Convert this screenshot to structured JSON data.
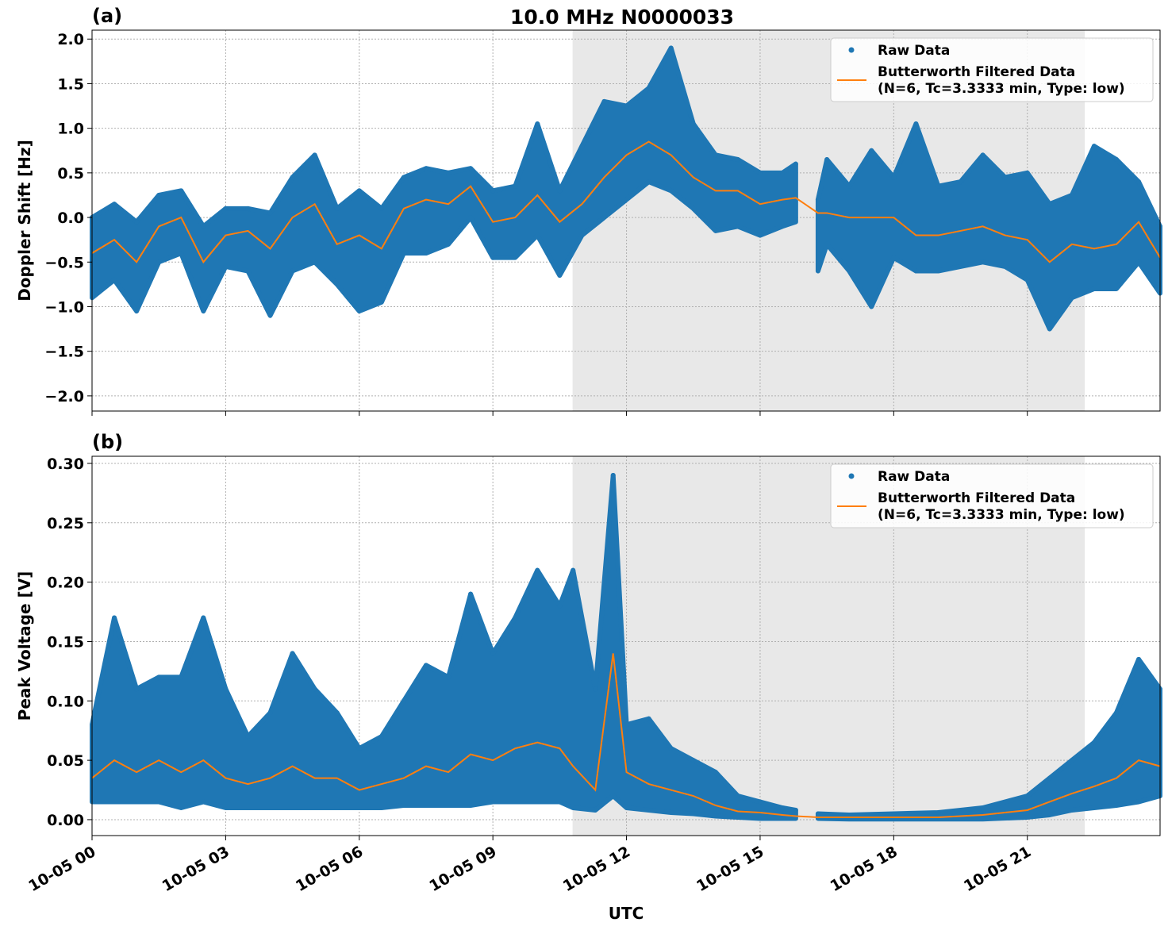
{
  "title": "10.0 MHz N0000033",
  "xlabel": "UTC",
  "x_tick_labels": [
    "10-05 00",
    "10-05 03",
    "10-05 06",
    "10-05 09",
    "10-05 12",
    "10-05 15",
    "10-05 18",
    "10-05 21"
  ],
  "x_tick_hours": [
    0,
    3,
    6,
    9,
    12,
    15,
    18,
    21
  ],
  "colors": {
    "raw": "#1f77b4",
    "filtered": "#ff7f0e",
    "shade": "#e8e8e8"
  },
  "chart_data": [
    {
      "type": "scatter",
      "panel_label": "(a)",
      "ylabel": "Doppler Shift [Hz]",
      "xlim_hours": [
        0,
        23.98
      ],
      "ylim": [
        -2.17,
        2.1
      ],
      "yticks": [
        -2.0,
        -1.5,
        -1.0,
        -0.5,
        0.0,
        0.5,
        1.0,
        1.5,
        2.0
      ],
      "ytick_labels": [
        "−2.0",
        "−1.5",
        "−1.0",
        "−0.5",
        "0.0",
        "0.5",
        "1.0",
        "1.5",
        "2.0"
      ],
      "grid": true,
      "shaded_span_hours": [
        10.79,
        22.29
      ],
      "legend": {
        "placement": "upper right",
        "raw": "Raw Data",
        "filtered_line1": "Butterworth Filtered Data",
        "filtered_line2": "(N=6, Tc=3.3333 min, Type: low)"
      },
      "data_gap_hours": [
        15.8,
        16.3
      ],
      "columns": [
        "hour",
        "filtered",
        "raw_min",
        "raw_max"
      ],
      "points": [
        [
          0,
          -0.4,
          -0.9,
          0.0
        ],
        [
          0.5,
          -0.25,
          -0.7,
          0.15
        ],
        [
          1.0,
          -0.5,
          -1.05,
          -0.05
        ],
        [
          1.5,
          -0.1,
          -0.5,
          0.25
        ],
        [
          2.0,
          0.0,
          -0.4,
          0.3
        ],
        [
          2.5,
          -0.5,
          -1.05,
          -0.1
        ],
        [
          3.0,
          -0.2,
          -0.55,
          0.1
        ],
        [
          3.5,
          -0.15,
          -0.6,
          0.1
        ],
        [
          4.0,
          -0.35,
          -1.1,
          0.05
        ],
        [
          4.5,
          0.0,
          -0.6,
          0.45
        ],
        [
          5.0,
          0.15,
          -0.5,
          0.7
        ],
        [
          5.5,
          -0.3,
          -0.75,
          0.1
        ],
        [
          6.0,
          -0.2,
          -1.05,
          0.3
        ],
        [
          6.5,
          -0.35,
          -0.95,
          0.1
        ],
        [
          7.0,
          0.1,
          -0.4,
          0.45
        ],
        [
          7.5,
          0.2,
          -0.4,
          0.55
        ],
        [
          8.0,
          0.15,
          -0.3,
          0.5
        ],
        [
          8.5,
          0.35,
          0.0,
          0.55
        ],
        [
          9.0,
          -0.05,
          -0.45,
          0.3
        ],
        [
          9.5,
          0.0,
          -0.45,
          0.35
        ],
        [
          10.0,
          0.25,
          -0.2,
          1.05
        ],
        [
          10.5,
          -0.05,
          -0.65,
          0.3
        ],
        [
          11.0,
          0.15,
          -0.2,
          0.8
        ],
        [
          11.5,
          0.45,
          0.0,
          1.3
        ],
        [
          12.0,
          0.7,
          0.2,
          1.25
        ],
        [
          12.5,
          0.85,
          0.4,
          1.45
        ],
        [
          13.0,
          0.7,
          0.3,
          1.9
        ],
        [
          13.5,
          0.45,
          0.1,
          1.05
        ],
        [
          14.0,
          0.3,
          -0.15,
          0.7
        ],
        [
          14.5,
          0.3,
          -0.1,
          0.65
        ],
        [
          15.0,
          0.15,
          -0.2,
          0.5
        ],
        [
          15.5,
          0.2,
          -0.1,
          0.5
        ],
        [
          15.8,
          0.22,
          -0.05,
          0.6
        ],
        [
          16.3,
          0.05,
          -0.6,
          0.2
        ],
        [
          16.5,
          0.05,
          -0.3,
          0.65
        ],
        [
          17.0,
          0.0,
          -0.6,
          0.35
        ],
        [
          17.5,
          0.0,
          -1.0,
          0.75
        ],
        [
          18.0,
          0.0,
          -0.45,
          0.45
        ],
        [
          18.5,
          -0.2,
          -0.6,
          1.05
        ],
        [
          19.0,
          -0.2,
          -0.6,
          0.35
        ],
        [
          19.5,
          -0.15,
          -0.55,
          0.4
        ],
        [
          20.0,
          -0.1,
          -0.5,
          0.7
        ],
        [
          20.5,
          -0.2,
          -0.55,
          0.45
        ],
        [
          21.0,
          -0.25,
          -0.7,
          0.5
        ],
        [
          21.5,
          -0.5,
          -1.25,
          0.15
        ],
        [
          22.0,
          -0.3,
          -0.9,
          0.25
        ],
        [
          22.5,
          -0.35,
          -0.8,
          0.8
        ],
        [
          23.0,
          -0.3,
          -0.8,
          0.65
        ],
        [
          23.5,
          -0.05,
          -0.5,
          0.4
        ],
        [
          23.98,
          -0.45,
          -0.85,
          -0.1
        ]
      ]
    },
    {
      "type": "scatter",
      "panel_label": "(b)",
      "ylabel": "Peak Voltage [V]",
      "xlim_hours": [
        0,
        23.98
      ],
      "ylim": [
        -0.0134,
        0.306
      ],
      "yticks": [
        0.0,
        0.05,
        0.1,
        0.15,
        0.2,
        0.25,
        0.3
      ],
      "ytick_labels": [
        "0.00",
        "0.05",
        "0.10",
        "0.15",
        "0.20",
        "0.25",
        "0.30"
      ],
      "grid": true,
      "shaded_span_hours": [
        10.79,
        22.29
      ],
      "legend": {
        "placement": "upper right",
        "raw": "Raw Data",
        "filtered_line1": "Butterworth Filtered Data",
        "filtered_line2": "(N=6, Tc=3.3333 min, Type: low)"
      },
      "data_gap_hours": [
        15.8,
        16.3
      ],
      "columns": [
        "hour",
        "filtered",
        "raw_min",
        "raw_max"
      ],
      "points": [
        [
          0,
          0.035,
          0.015,
          0.08
        ],
        [
          0.5,
          0.05,
          0.015,
          0.17
        ],
        [
          1.0,
          0.04,
          0.015,
          0.11
        ],
        [
          1.5,
          0.05,
          0.015,
          0.12
        ],
        [
          2.0,
          0.04,
          0.01,
          0.12
        ],
        [
          2.5,
          0.05,
          0.015,
          0.17
        ],
        [
          3.0,
          0.035,
          0.01,
          0.11
        ],
        [
          3.5,
          0.03,
          0.01,
          0.07
        ],
        [
          4.0,
          0.035,
          0.01,
          0.09
        ],
        [
          4.5,
          0.045,
          0.01,
          0.14
        ],
        [
          5.0,
          0.035,
          0.01,
          0.11
        ],
        [
          5.5,
          0.035,
          0.01,
          0.09
        ],
        [
          6.0,
          0.025,
          0.01,
          0.06
        ],
        [
          6.5,
          0.03,
          0.01,
          0.07
        ],
        [
          7.0,
          0.035,
          0.012,
          0.1
        ],
        [
          7.5,
          0.045,
          0.012,
          0.13
        ],
        [
          8.0,
          0.04,
          0.012,
          0.12
        ],
        [
          8.5,
          0.055,
          0.012,
          0.19
        ],
        [
          9.0,
          0.05,
          0.015,
          0.14
        ],
        [
          9.5,
          0.06,
          0.015,
          0.17
        ],
        [
          10.0,
          0.065,
          0.015,
          0.21
        ],
        [
          10.5,
          0.06,
          0.015,
          0.18
        ],
        [
          10.8,
          0.045,
          0.01,
          0.21
        ],
        [
          11.3,
          0.025,
          0.008,
          0.11
        ],
        [
          11.7,
          0.14,
          0.02,
          0.29
        ],
        [
          12.0,
          0.04,
          0.01,
          0.08
        ],
        [
          12.5,
          0.03,
          0.008,
          0.085
        ],
        [
          13.0,
          0.025,
          0.006,
          0.06
        ],
        [
          13.5,
          0.02,
          0.005,
          0.05
        ],
        [
          14.0,
          0.012,
          0.003,
          0.04
        ],
        [
          14.5,
          0.007,
          0.002,
          0.02
        ],
        [
          15.0,
          0.006,
          0.001,
          0.015
        ],
        [
          15.5,
          0.004,
          0.001,
          0.01
        ],
        [
          15.8,
          0.003,
          0.001,
          0.008
        ],
        [
          16.3,
          0.002,
          0.001,
          0.005
        ],
        [
          17.0,
          0.002,
          0.0005,
          0.004
        ],
        [
          18.0,
          0.002,
          0.0005,
          0.005
        ],
        [
          19.0,
          0.002,
          0.0005,
          0.006
        ],
        [
          20.0,
          0.004,
          0.0005,
          0.01
        ],
        [
          21.0,
          0.008,
          0.002,
          0.02
        ],
        [
          21.5,
          0.015,
          0.004,
          0.035
        ],
        [
          22.0,
          0.022,
          0.008,
          0.05
        ],
        [
          22.5,
          0.028,
          0.01,
          0.065
        ],
        [
          23.0,
          0.035,
          0.012,
          0.09
        ],
        [
          23.5,
          0.05,
          0.015,
          0.135
        ],
        [
          23.98,
          0.045,
          0.02,
          0.11
        ]
      ]
    }
  ]
}
